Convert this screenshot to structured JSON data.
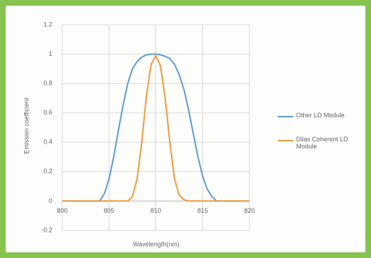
{
  "chart_data": {
    "type": "line",
    "y_label": "Emission coefficient",
    "x_label": "Wavelength(nm)",
    "x": [
      800,
      800.5,
      801,
      801.5,
      802,
      802.5,
      803,
      803.5,
      804,
      804.5,
      805,
      805.5,
      806,
      806.5,
      807,
      807.5,
      808,
      808.5,
      809,
      809.5,
      810,
      810.5,
      811,
      811.5,
      812,
      812.5,
      813,
      813.5,
      814,
      814.5,
      815,
      815.5,
      816,
      816.5,
      817,
      817.5,
      818,
      818.5,
      819,
      819.5,
      820
    ],
    "series": [
      {
        "name": "Other LD Module",
        "color": "#5b9bd5",
        "values": [
          0,
          0,
          0,
          0,
          0,
          0,
          0,
          0,
          0,
          0.05,
          0.15,
          0.3,
          0.48,
          0.65,
          0.8,
          0.9,
          0.95,
          0.98,
          0.995,
          1,
          1,
          0.995,
          0.985,
          0.97,
          0.93,
          0.86,
          0.76,
          0.62,
          0.46,
          0.3,
          0.17,
          0.08,
          0.03,
          0,
          0,
          0,
          0,
          0,
          0,
          0,
          0
        ]
      },
      {
        "name": "Dilas Coherent LD Module",
        "color": "#ed9a3c",
        "values": [
          0,
          0,
          0,
          0,
          0,
          0,
          0,
          0,
          0,
          0,
          0,
          0,
          0,
          0,
          0,
          0.03,
          0.15,
          0.4,
          0.72,
          0.93,
          0.99,
          0.92,
          0.7,
          0.4,
          0.15,
          0.04,
          0.01,
          0,
          0,
          0,
          0,
          0,
          0,
          0,
          0,
          0,
          0,
          0,
          0,
          0,
          0
        ]
      }
    ],
    "xlim": [
      800,
      820
    ],
    "xticks": [
      800,
      805,
      810,
      815,
      820
    ],
    "ylim": [
      -0.2,
      1.2
    ],
    "yticks": [
      -0.2,
      0,
      0.2,
      0.4,
      0.6,
      0.8,
      1,
      1.2
    ],
    "grid": true,
    "legend": "right"
  }
}
